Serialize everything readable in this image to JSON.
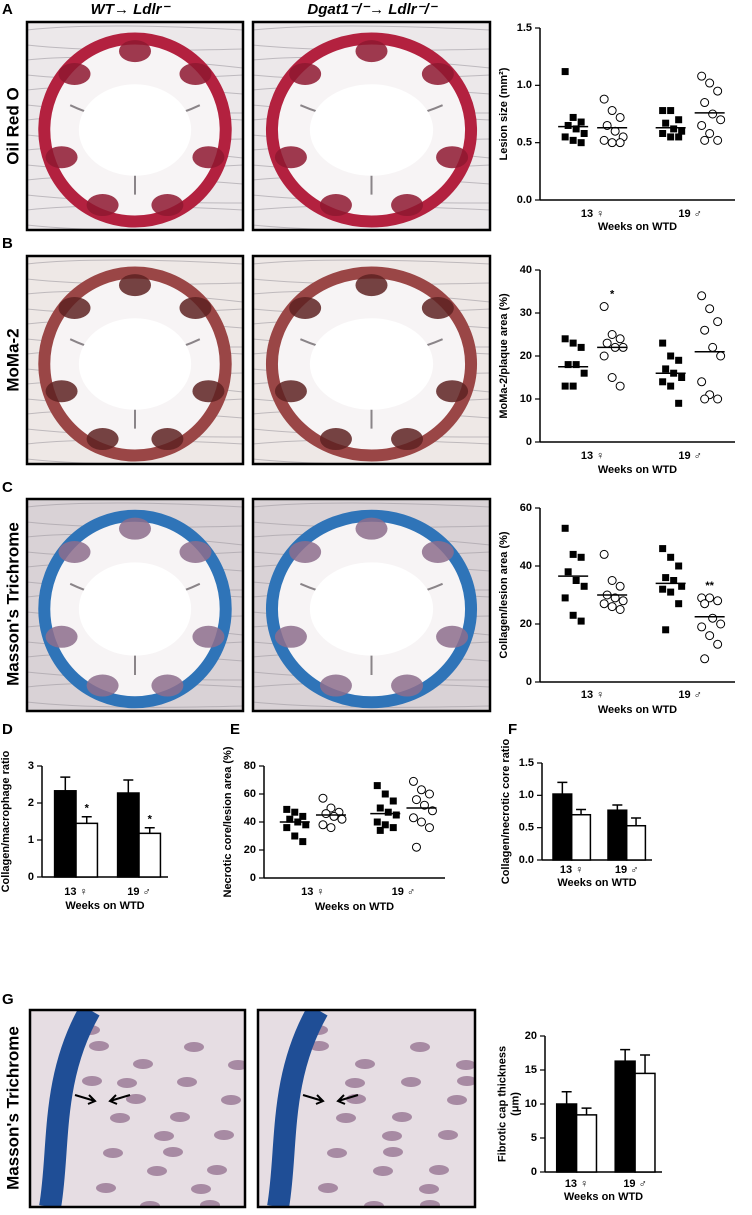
{
  "figure": {
    "panels": [
      "A",
      "B",
      "C",
      "D",
      "E",
      "F",
      "G"
    ],
    "columns": [
      "WT→ Ldlr⁻",
      "Dgat1⁻/⁻→ Ldlr⁻/⁻"
    ],
    "rows": [
      "Oil Red O",
      "MoMa-2",
      "Masson's Trichrome",
      "Masson's Trichrome"
    ]
  },
  "chart_data": [
    {
      "type": "dotplot",
      "ylabel": [
        "Lesion size (mm²)"
      ],
      "xlabel": "Weeks on WTD",
      "categories": [
        "13 ♀",
        "19 ♂"
      ],
      "ylim": [
        0,
        1.5
      ],
      "yticks": [
        {
          "value": 0,
          "label": "0.0"
        },
        0.5,
        {
          "value": 1,
          "label": "1.0"
        },
        1.5
      ],
      "series": [
        {
          "color": "#000000",
          "marker": "square",
          "values": [
            [
              1.12,
              0.72,
              0.68,
              0.65,
              0.62,
              0.58,
              0.55,
              0.52,
              0.5
            ],
            [
              0.78,
              0.78,
              0.7,
              0.67,
              0.62,
              0.6,
              0.58,
              0.55,
              0.55
            ]
          ],
          "means": [
            0.64,
            0.63
          ]
        },
        {
          "color": "#000000",
          "marker": "circle",
          "values": [
            [
              0.88,
              0.78,
              0.72,
              0.65,
              0.6,
              0.55,
              0.52,
              0.5,
              0.5
            ],
            [
              1.08,
              1.02,
              0.95,
              0.85,
              0.75,
              0.7,
              0.65,
              0.58,
              0.52,
              0.52
            ]
          ],
          "means": [
            0.63,
            0.76
          ]
        }
      ]
    },
    {
      "type": "dotplot",
      "ylabel": [
        "MoMa-2/plaque area (%)"
      ],
      "xlabel": "Weeks on WTD",
      "categories": [
        "13 ♀",
        "19 ♂"
      ],
      "ylim": [
        0,
        40
      ],
      "yticks": [
        0,
        10,
        20,
        30,
        40
      ],
      "series": [
        {
          "color": "#000000",
          "marker": "square",
          "values": [
            [
              24,
              23,
              22,
              18,
              18,
              16,
              13,
              13
            ],
            [
              23,
              20,
              19,
              17,
              16,
              15,
              14,
              13,
              9
            ]
          ],
          "means": [
            17.5,
            16
          ]
        },
        {
          "color": "#000000",
          "marker": "circle",
          "values": [
            [
              31.5,
              25,
              24,
              23,
              22,
              22,
              20,
              15,
              13
            ],
            [
              34,
              31,
              28,
              26,
              22,
              20,
              14,
              11,
              10,
              10
            ]
          ],
          "means": [
            22,
            21
          ],
          "annotations": [
            "*",
            null
          ]
        }
      ]
    },
    {
      "type": "dotplot",
      "ylabel": [
        "Collagen/lesion area (%)"
      ],
      "xlabel": "Weeks on WTD",
      "categories": [
        "13 ♀",
        "19 ♂"
      ],
      "ylim": [
        0,
        60
      ],
      "yticks": [
        0,
        20,
        40,
        60
      ],
      "series": [
        {
          "color": "#000000",
          "marker": "square",
          "values": [
            [
              53,
              44,
              43,
              38,
              35,
              33,
              29,
              23,
              21
            ],
            [
              46,
              43,
              40,
              36,
              35,
              33,
              32,
              31,
              27,
              18
            ]
          ],
          "means": [
            36.5,
            34
          ]
        },
        {
          "color": "#000000",
          "marker": "circle",
          "values": [
            [
              44,
              35,
              33,
              30,
              29,
              28,
              27,
              26,
              25
            ],
            [
              29,
              29,
              28,
              27,
              22,
              20,
              19,
              16,
              13,
              8
            ]
          ],
          "means": [
            30,
            22.5
          ],
          "annotations": [
            null,
            "**"
          ]
        }
      ]
    },
    {
      "type": "bar",
      "ylabel": [
        "Collagen/macrophage ratio"
      ],
      "xlabel": "Weeks on WTD",
      "categories": [
        "13 ♀",
        "19 ♂"
      ],
      "ylim": [
        0,
        3
      ],
      "yticks": [
        0,
        1,
        2,
        3
      ],
      "series": [
        {
          "color": "#000000",
          "values": [
            2.33,
            2.27
          ],
          "errors": [
            0.37,
            0.35
          ]
        },
        {
          "color": "#ffffff",
          "values": [
            1.45,
            1.18
          ],
          "errors": [
            0.18,
            0.15
          ],
          "annotations": [
            "*",
            "*"
          ]
        }
      ]
    },
    {
      "type": "dotplot",
      "ylabel": [
        "Necrotic core/lesion area (%)"
      ],
      "xlabel": "Weeks on WTD",
      "categories": [
        "13 ♀",
        "19 ♂"
      ],
      "ylim": [
        0,
        80
      ],
      "yticks": [
        0,
        20,
        40,
        60,
        80
      ],
      "series": [
        {
          "color": "#000000",
          "marker": "square",
          "values": [
            [
              49,
              47,
              44,
              42,
              40,
              38,
              36,
              30,
              26
            ],
            [
              66,
              60,
              55,
              50,
              47,
              45,
              40,
              38,
              36,
              34
            ]
          ],
          "means": [
            40,
            46
          ]
        },
        {
          "color": "#000000",
          "marker": "circle",
          "values": [
            [
              57,
              50,
              47,
              46,
              44,
              42,
              38,
              36
            ],
            [
              69,
              63,
              60,
              56,
              52,
              48,
              43,
              40,
              36,
              22
            ]
          ],
          "means": [
            45,
            50
          ]
        }
      ]
    },
    {
      "type": "bar",
      "ylabel": [
        "Collagen/necrotic core ratio"
      ],
      "xlabel": "Weeks on WTD",
      "categories": [
        "13 ♀",
        "19 ♂"
      ],
      "ylim": [
        0,
        1.5
      ],
      "yticks": [
        {
          "value": 0,
          "label": "0.0"
        },
        0.5,
        {
          "value": 1,
          "label": "1.0"
        },
        1.5
      ],
      "series": [
        {
          "color": "#000000",
          "values": [
            1.02,
            0.77
          ],
          "errors": [
            0.18,
            0.08
          ]
        },
        {
          "color": "#ffffff",
          "values": [
            0.7,
            0.53
          ],
          "errors": [
            0.08,
            0.12
          ]
        }
      ]
    },
    {
      "type": "bar",
      "ylabel": [
        "Fibrotic cap thickness",
        "(μm)"
      ],
      "xlabel": "Weeks on WTD",
      "categories": [
        "13 ♀",
        "19 ♂"
      ],
      "ylim": [
        0,
        20
      ],
      "yticks": [
        0,
        5,
        10,
        15,
        20
      ],
      "series": [
        {
          "color": "#000000",
          "values": [
            10,
            16.3
          ],
          "errors": [
            1.8,
            1.7
          ]
        },
        {
          "color": "#ffffff",
          "values": [
            8.4,
            14.5
          ],
          "errors": [
            1,
            2.7
          ]
        }
      ]
    }
  ]
}
